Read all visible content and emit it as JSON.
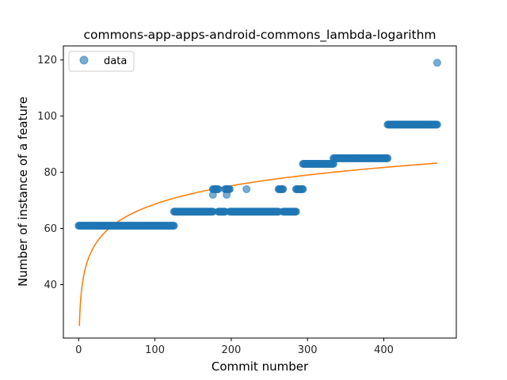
{
  "chart_data": {
    "type": "scatter",
    "title": "commons-app-apps-android-commons_lambda-logarithm",
    "xlabel": "Commit number",
    "ylabel": "Number of instance of a feature",
    "xlim": [
      -20,
      495
    ],
    "ylim": [
      21,
      125
    ],
    "xticks": [
      0,
      100,
      200,
      300,
      400
    ],
    "yticks": [
      40,
      60,
      80,
      100,
      120
    ],
    "grid": false,
    "legend": {
      "placement": "top-left",
      "entries": [
        "data"
      ]
    },
    "colors": {
      "data": "#1f77b4",
      "fit": "#ff7f0e"
    },
    "series": [
      {
        "name": "data",
        "kind": "scatter",
        "segments": [
          {
            "x_start": 0,
            "x_end": 125,
            "y": 61
          },
          {
            "x_start": 125,
            "x_end": 176,
            "y": 66
          },
          {
            "x_start": 176,
            "x_end": 183,
            "y": 74
          },
          {
            "x_start": 183,
            "x_end": 192,
            "y": 66
          },
          {
            "x_start": 192,
            "x_end": 198,
            "y": 74
          },
          {
            "x_start": 198,
            "x_end": 262,
            "y": 66
          },
          {
            "x_start": 262,
            "x_end": 268,
            "y": 74
          },
          {
            "x_start": 268,
            "x_end": 285,
            "y": 66
          },
          {
            "x_start": 285,
            "x_end": 294,
            "y": 74
          },
          {
            "x_start": 294,
            "x_end": 334,
            "y": 83
          },
          {
            "x_start": 334,
            "x_end": 405,
            "y": 85
          },
          {
            "x_start": 405,
            "x_end": 470,
            "y": 97
          }
        ],
        "points": [
          {
            "x": 176,
            "y": 72
          },
          {
            "x": 194,
            "y": 72
          },
          {
            "x": 220,
            "y": 74
          },
          {
            "x": 470,
            "y": 119
          }
        ]
      },
      {
        "kind": "line",
        "model": "a + b*ln(x)",
        "a": 25.3,
        "b": 9.42,
        "x_range": [
          1,
          470
        ]
      }
    ]
  }
}
